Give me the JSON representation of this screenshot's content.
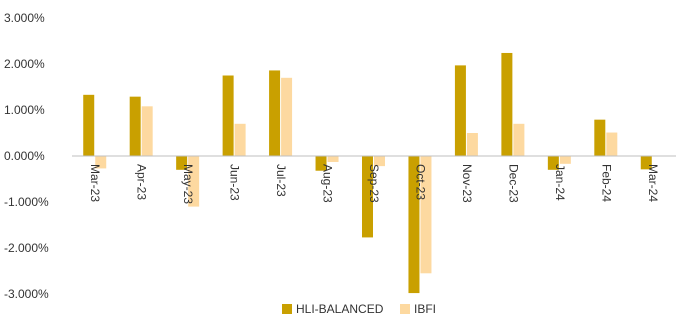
{
  "chart_data": {
    "type": "bar",
    "categories": [
      "Mar-23",
      "Apr-23",
      "May-23",
      "Jun-23",
      "Jul-23",
      "Aug-23",
      "Sep-23",
      "Oct-23",
      "Nov-23",
      "Dec-23",
      "Jan-24",
      "Feb-24",
      "Mar-24"
    ],
    "series": [
      {
        "name": "HLI-BALANCED",
        "color": "#C9A000",
        "values": [
          1.33,
          1.29,
          -0.3,
          1.75,
          1.86,
          -0.32,
          -1.77,
          -2.98,
          1.97,
          2.24,
          -0.3,
          0.79,
          -0.29
        ]
      },
      {
        "name": "IBFI",
        "color": "#FDD9A0",
        "values": [
          -0.27,
          1.08,
          -1.1,
          0.7,
          1.7,
          -0.13,
          -0.22,
          -2.55,
          0.5,
          0.7,
          -0.17,
          0.51,
          0.0
        ]
      }
    ],
    "y_ticks": [
      "3.000%",
      "2.000%",
      "1.000%",
      "0.000%",
      "-1.000%",
      "-2.000%",
      "-3.000%"
    ],
    "y_tick_values": [
      3,
      2,
      1,
      0,
      -1,
      -2,
      -3
    ],
    "ylim": [
      -3,
      3
    ],
    "title": "",
    "xlabel": "",
    "ylabel": "",
    "grid": false,
    "legend_position": "bottom-center"
  }
}
